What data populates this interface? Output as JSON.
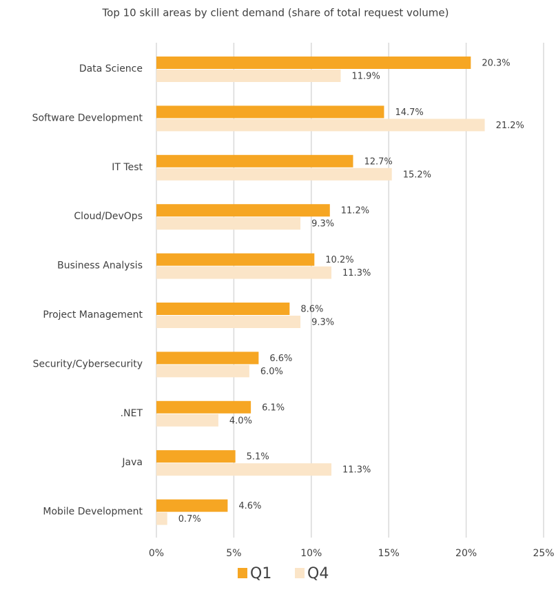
{
  "chart_data": {
    "type": "bar",
    "orientation": "horizontal",
    "title": "Top 10 skill areas by client demand (share of total request volume)",
    "categories": [
      "Data Science",
      "Software Development",
      "IT Test",
      "Cloud/DevOps",
      "Business Analysis",
      "Project Management",
      "Security/Cybersecurity",
      ".NET",
      "Java",
      "Mobile Development"
    ],
    "series": [
      {
        "name": "Q1",
        "color": "#f6a623",
        "values": [
          20.3,
          14.7,
          12.7,
          11.2,
          10.2,
          8.6,
          6.6,
          6.1,
          5.1,
          4.6
        ],
        "value_labels": [
          "20.3%",
          "14.7%",
          "12.7%",
          "11.2%",
          "10.2%",
          "8.6%",
          "6.6%",
          "6.1%",
          "5.1%",
          "4.6%"
        ]
      },
      {
        "name": "Q4",
        "color": "#fbe5c8",
        "values": [
          11.9,
          21.2,
          15.2,
          9.3,
          11.3,
          9.3,
          6.0,
          4.0,
          11.3,
          0.7
        ],
        "value_labels": [
          "11.9%",
          "21.2%",
          "15.2%",
          "9.3%",
          "11.3%",
          "9.3%",
          "6.0%",
          "4.0%",
          "11.3%",
          "0.7%"
        ]
      }
    ],
    "xlim": [
      0,
      25
    ],
    "xticks": [
      {
        "value": 0,
        "label": "0%"
      },
      {
        "value": 5,
        "label": "5%"
      },
      {
        "value": 10,
        "label": "10%"
      },
      {
        "value": 15,
        "label": "15%"
      },
      {
        "value": 20,
        "label": "20%"
      },
      {
        "value": 25,
        "label": "25%"
      }
    ],
    "grid": true,
    "legend": "bottom"
  }
}
